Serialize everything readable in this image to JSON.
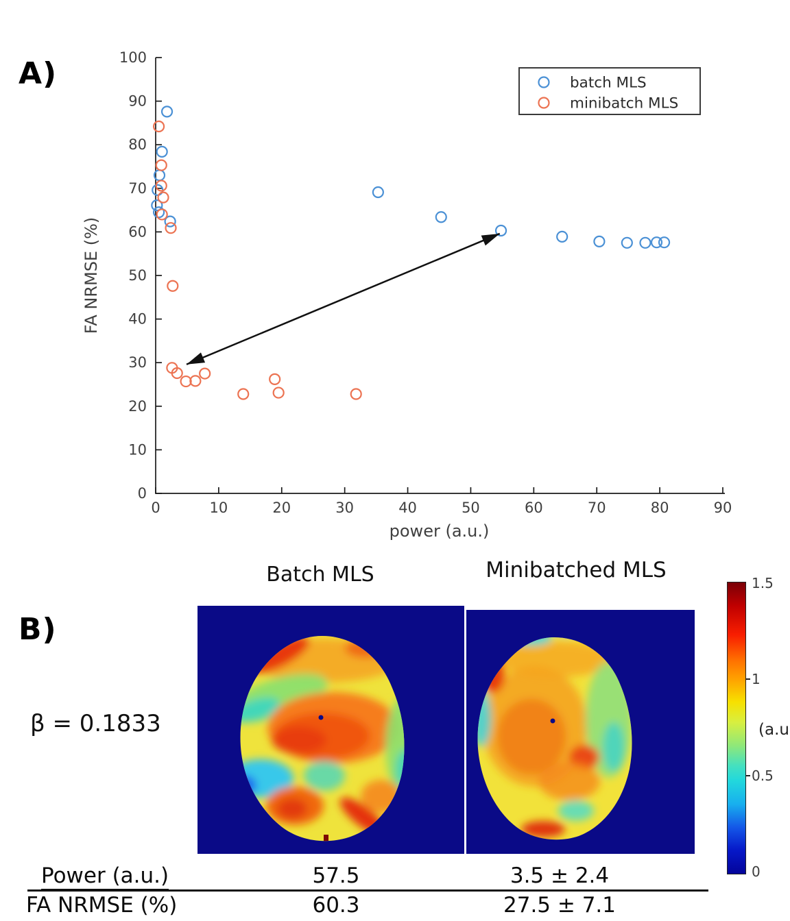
{
  "figure": {
    "panel_a_label": "A)",
    "panel_b_label": "B)"
  },
  "colors": {
    "batch_blue": "#4a90d5",
    "minibatch_orange": "#ec7352",
    "brain_background_navy": "#0a0a87",
    "axis": "#1a1a1a",
    "tick_text": "#3f3f3f",
    "arrow": "#111111"
  },
  "chart_data": {
    "type": "scatter",
    "title": "",
    "xlabel": "power (a.u.)",
    "ylabel": "FA NRMSE (%)",
    "xlim": [
      0,
      90
    ],
    "ylim": [
      0,
      100
    ],
    "xticks": [
      0,
      10,
      20,
      30,
      40,
      50,
      60,
      70,
      80,
      90
    ],
    "yticks": [
      0,
      10,
      20,
      30,
      40,
      50,
      60,
      70,
      80,
      90,
      100
    ],
    "grid": false,
    "legend_position": "upper right",
    "series": [
      {
        "name": "batch MLS",
        "color": "#4a90d5",
        "points": [
          [
            1.8,
            87.6
          ],
          [
            1.0,
            78.4
          ],
          [
            0.6,
            73.0
          ],
          [
            0.3,
            69.6
          ],
          [
            0.2,
            66.1
          ],
          [
            0.5,
            64.5
          ],
          [
            2.3,
            62.4
          ],
          [
            35.3,
            69.1
          ],
          [
            45.3,
            63.4
          ],
          [
            54.8,
            60.3
          ],
          [
            64.5,
            58.9
          ],
          [
            70.4,
            57.8
          ],
          [
            74.8,
            57.5
          ],
          [
            77.7,
            57.5
          ],
          [
            79.5,
            57.6
          ],
          [
            80.7,
            57.6
          ]
        ]
      },
      {
        "name": "minibatch MLS",
        "color": "#ec7352",
        "points": [
          [
            0.5,
            84.2
          ],
          [
            0.9,
            75.3
          ],
          [
            0.9,
            70.6
          ],
          [
            1.2,
            67.9
          ],
          [
            1.0,
            64.0
          ],
          [
            2.4,
            60.9
          ],
          [
            2.7,
            47.6
          ],
          [
            2.6,
            28.8
          ],
          [
            3.4,
            27.6
          ],
          [
            4.8,
            25.7
          ],
          [
            6.3,
            25.8
          ],
          [
            7.8,
            27.5
          ],
          [
            13.9,
            22.8
          ],
          [
            18.9,
            26.2
          ],
          [
            19.5,
            23.1
          ],
          [
            31.8,
            22.8
          ]
        ]
      }
    ],
    "annotation_arrow": {
      "double_headed": true,
      "from_xy": [
        54.6,
        59.6
      ],
      "to_xy": [
        4.9,
        29.6
      ]
    }
  },
  "panel_b": {
    "left_title": "Batch MLS",
    "right_title": "Minibatched MLS",
    "beta_label": "β = 0.1833",
    "colorbar": {
      "range": [
        0,
        1.5
      ],
      "tick_labels": [
        "1.5",
        "1",
        "0.5",
        "0"
      ],
      "tick_values": [
        1.5,
        1,
        0.5,
        0
      ],
      "unit_label": "(a.u.)",
      "colormap": "jet"
    },
    "table": {
      "rows": [
        {
          "label": "Power (a.u.)",
          "batch": "57.5",
          "minibatch": "3.5 ± 2.4"
        },
        {
          "label": "FA NRMSE (%)",
          "batch": "60.3",
          "minibatch": "27.5 ± 7.1"
        }
      ]
    }
  }
}
